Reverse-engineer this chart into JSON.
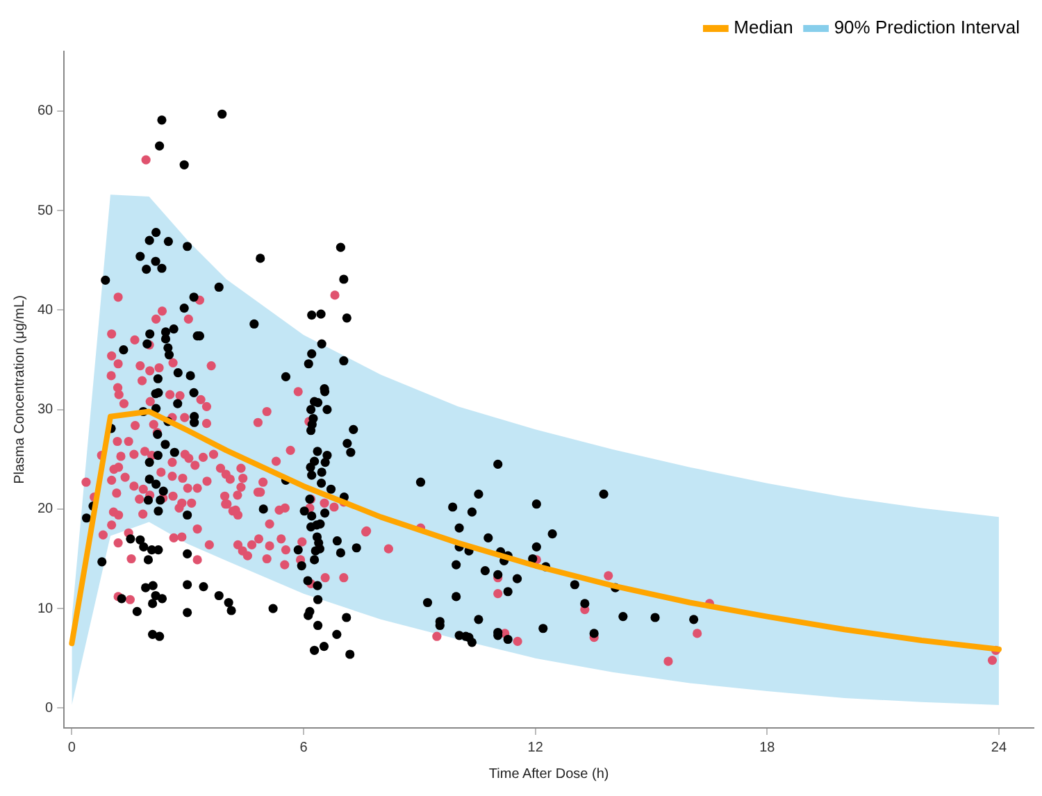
{
  "chart_data": {
    "type": "scatter",
    "xlabel": "Time After Dose (h)",
    "ylabel": "Plasma Concentration (μg/mL)",
    "xlim": [
      -0.2,
      24.9
    ],
    "xticks": [
      0,
      6,
      12,
      18,
      24
    ],
    "ylim": [
      -2,
      66
    ],
    "yticks": [
      0,
      10,
      20,
      30,
      40,
      50,
      60
    ],
    "grid": false,
    "legend": "top right",
    "series": [
      {
        "type": "line",
        "name": "Median",
        "color": "#ffa500",
        "x": [
          0,
          1,
          2,
          3,
          4,
          6,
          8,
          10,
          12,
          14,
          16,
          18,
          20,
          22,
          24
        ],
        "values": [
          6.5,
          29.3,
          29.8,
          27.9,
          25.9,
          22.3,
          19.2,
          16.6,
          14.3,
          12.3,
          10.6,
          9.2,
          7.9,
          6.8,
          5.9
        ]
      },
      {
        "type": "line",
        "name": "90% Prediction Interval",
        "color": "#87ceeb",
        "x": [
          0,
          1,
          2,
          3,
          4,
          6,
          8,
          10,
          12,
          14,
          16,
          18,
          20,
          22,
          24
        ],
        "values": [
          null,
          null,
          null,
          null,
          null,
          null,
          null,
          null,
          null,
          null,
          null,
          null,
          null,
          null,
          null
        ],
        "lower": [
          0.3,
          17.3,
          18.7,
          16.5,
          14.8,
          11.5,
          8.9,
          6.9,
          5.0,
          3.6,
          2.5,
          1.7,
          1.0,
          0.6,
          0.3
        ],
        "upper": [
          9,
          51.6,
          51.4,
          47,
          43.1,
          37.5,
          33.5,
          30.3,
          28.0,
          26.0,
          24.2,
          22.6,
          21.2,
          20.1,
          19.2
        ]
      },
      {
        "type": "scatter",
        "marker": "circle",
        "color": "#000000",
        "x": [
          2.33,
          2.27,
          2.91,
          3.89,
          2.18,
          2.01,
          2.5,
          2.99,
          1.77,
          2.17,
          1.93,
          2.33,
          0.87,
          3.81,
          3.16,
          2.91,
          2.02,
          2.43,
          2.43,
          2.64,
          3.25,
          3.31,
          1.34,
          1.95,
          2.49,
          2.52,
          2.75,
          3.07,
          2.23,
          2.17,
          2.24,
          3.16,
          2.18,
          2.74,
          2.49,
          3.17,
          3.17,
          1.85,
          1.02,
          2.22,
          2.42,
          2.66,
          2.01,
          2.23,
          2.01,
          2.18,
          2.37,
          2.29,
          2.24,
          1.98,
          2.99,
          0.55,
          0.38,
          0.78,
          1.52,
          1.77,
          1.86,
          1.98,
          2.07,
          2.24,
          2.99,
          1.91,
          2.1,
          2.17,
          2.34,
          2.09,
          2.99,
          3.41,
          3.81,
          4.06,
          1.29,
          1.69,
          2.99,
          2.09,
          2.27,
          4.88,
          6.96,
          7.04,
          6.21,
          6.45,
          7.12,
          4.72,
          6.47,
          6.21,
          6.13,
          7.04,
          5.54,
          6.54,
          6.55,
          6.28,
          6.37,
          6.19,
          6.61,
          6.25,
          6.22,
          6.19,
          7.29,
          7.13,
          7.22,
          6.36,
          6.61,
          6.56,
          6.28,
          6.18,
          6.47,
          6.21,
          5.54,
          6.46,
          6.71,
          7.05,
          6.16,
          4.96,
          6.02,
          6.55,
          6.21,
          6.43,
          6.19,
          6.34,
          6.87,
          6.35,
          6.39,
          6.42,
          6.31,
          5.86,
          6.96,
          7.37,
          6.28,
          5.95,
          6.11,
          6.36,
          6.37,
          4.13,
          5.21,
          6.16,
          6.12,
          7.11,
          6.37,
          6.86,
          6.53,
          6.28,
          7.2,
          11.03,
          9.03,
          10.53,
          13.77,
          9.86,
          10.36,
          12.03,
          10.03,
          12.44,
          10.78,
          10.03,
          10.28,
          11.1,
          11.29,
          11.19,
          12.03,
          11.93,
          12.27,
          9.95,
          10.7,
          11.03,
          11.53,
          11.29,
          13.02,
          14.07,
          9.21,
          9.95,
          13.28,
          14.27,
          15.1,
          16.1,
          9.53,
          9.53,
          10.53,
          12.2,
          10.03,
          10.2,
          10.36,
          10.28,
          11.03,
          11.03,
          11.29,
          13.52
        ],
        "values": [
          59.1,
          56.5,
          54.6,
          59.7,
          47.8,
          47.0,
          46.9,
          46.4,
          45.4,
          44.9,
          44.1,
          44.2,
          43.0,
          42.3,
          41.3,
          40.2,
          37.6,
          37.8,
          37.1,
          38.1,
          37.4,
          37.4,
          36.0,
          36.6,
          36.2,
          35.5,
          33.7,
          33.4,
          33.1,
          31.6,
          31.7,
          31.7,
          30.1,
          30.6,
          28.8,
          29.3,
          28.7,
          29.8,
          28.1,
          27.5,
          26.5,
          25.7,
          24.7,
          25.4,
          23.0,
          22.5,
          21.8,
          20.9,
          19.8,
          20.9,
          19.4,
          20.3,
          19.1,
          14.7,
          17.0,
          16.9,
          16.2,
          14.9,
          15.9,
          15.9,
          15.5,
          12.1,
          12.3,
          11.3,
          11.0,
          10.5,
          12.4,
          12.2,
          11.3,
          10.6,
          11.0,
          9.7,
          9.6,
          7.4,
          7.2,
          45.2,
          46.3,
          43.1,
          39.5,
          39.6,
          39.2,
          38.6,
          36.6,
          35.6,
          34.6,
          34.9,
          33.3,
          32.1,
          31.8,
          30.8,
          30.7,
          30.0,
          30.0,
          29.1,
          28.5,
          27.9,
          28.0,
          26.6,
          25.7,
          25.8,
          25.4,
          24.7,
          24.8,
          24.2,
          23.7,
          23.4,
          22.9,
          22.6,
          22.0,
          21.2,
          21.0,
          20.0,
          19.8,
          19.6,
          19.3,
          18.5,
          18.2,
          18.4,
          16.8,
          17.2,
          16.6,
          16.0,
          15.8,
          15.9,
          15.6,
          16.1,
          14.9,
          14.3,
          12.8,
          12.3,
          10.9,
          9.8,
          10.0,
          9.7,
          9.3,
          9.1,
          8.3,
          7.4,
          6.2,
          5.8,
          5.4,
          24.5,
          22.7,
          21.5,
          21.5,
          20.2,
          19.7,
          20.5,
          18.1,
          17.5,
          17.1,
          16.2,
          15.8,
          15.7,
          15.3,
          14.8,
          16.2,
          15.0,
          14.2,
          14.4,
          13.8,
          13.4,
          13.0,
          11.7,
          12.4,
          12.1,
          10.6,
          11.2,
          10.5,
          9.2,
          9.1,
          8.9,
          8.7,
          8.3,
          8.9,
          8.0,
          7.3,
          7.2,
          6.6,
          7.1,
          7.6,
          7.3,
          6.9,
          7.5
        ]
      },
      {
        "marker": "circle",
        "color": "#e0526e",
        "x": [
          1.92,
          1.2,
          3.31,
          2.34,
          2.18,
          3.02,
          1.03,
          1.63,
          2.01,
          1.03,
          1.2,
          1.77,
          2.62,
          3.61,
          1.02,
          1.82,
          2.02,
          2.26,
          1.19,
          1.22,
          1.35,
          2.54,
          2.8,
          3.34,
          3.49,
          2.03,
          2.92,
          2.6,
          3.49,
          1.64,
          2.12,
          2.21,
          1.18,
          1.47,
          0.77,
          1.27,
          1.61,
          1.89,
          2.07,
          2.6,
          2.93,
          3.03,
          3.19,
          3.4,
          3.67,
          3.85,
          3.99,
          1.09,
          1.21,
          1.03,
          1.38,
          2.31,
          2.6,
          2.87,
          3.0,
          3.25,
          3.5,
          0.37,
          0.58,
          1.16,
          1.61,
          1.85,
          1.75,
          2.02,
          2.36,
          2.62,
          2.85,
          3.1,
          1.08,
          1.21,
          1.84,
          2.78,
          3.96,
          3.98,
          1.03,
          0.81,
          1.47,
          2.64,
          2.85,
          3.25,
          1.2,
          3.56,
          1.54,
          3.25,
          1.2,
          1.51,
          4.3,
          4.3,
          6.81,
          5.86,
          5.05,
          4.82,
          6.14,
          5.66,
          5.29,
          4.38,
          4.43,
          4.1,
          4.38,
          4.29,
          4.95,
          4.82,
          4.88,
          4.02,
          4.17,
          4.24,
          5.37,
          5.52,
          5.12,
          6.19,
          6.16,
          6.54,
          6.79,
          7.04,
          7.61,
          4.84,
          4.66,
          4.42,
          4.55,
          5.12,
          5.42,
          5.54,
          5.05,
          5.51,
          5.96,
          5.92,
          6.56,
          7.04,
          6.19,
          7.63,
          8.2,
          9.03,
          12.03,
          11.03,
          11.03,
          13.89,
          13.28,
          16.51,
          9.45,
          11.21,
          11.54,
          13.52,
          16.19,
          15.44,
          23.92,
          23.83
        ],
        "values": [
          55.1,
          41.3,
          41.0,
          39.9,
          39.1,
          39.1,
          37.6,
          37.0,
          36.5,
          35.4,
          34.6,
          34.4,
          34.7,
          34.4,
          33.4,
          32.9,
          33.9,
          34.2,
          32.2,
          31.5,
          30.6,
          31.5,
          31.4,
          31.0,
          30.3,
          30.8,
          29.2,
          29.2,
          28.6,
          28.4,
          28.5,
          27.7,
          26.8,
          26.8,
          25.4,
          25.3,
          25.5,
          25.8,
          25.4,
          24.7,
          25.5,
          25.1,
          24.4,
          25.2,
          25.5,
          24.1,
          23.5,
          24.0,
          24.2,
          22.9,
          23.2,
          23.7,
          23.3,
          23.1,
          22.1,
          22.1,
          22.8,
          22.7,
          21.2,
          21.6,
          22.3,
          22.0,
          21.0,
          21.4,
          21.1,
          21.3,
          20.6,
          20.6,
          19.7,
          19.4,
          19.5,
          20.1,
          21.3,
          20.5,
          18.4,
          17.4,
          17.6,
          17.1,
          17.2,
          18.0,
          16.6,
          16.4,
          15.0,
          14.9,
          11.2,
          10.9,
          16.4,
          19.4,
          41.5,
          31.8,
          29.8,
          28.7,
          28.8,
          25.9,
          24.8,
          24.1,
          23.1,
          23.0,
          22.2,
          21.4,
          22.7,
          21.7,
          21.7,
          20.5,
          19.8,
          19.9,
          19.9,
          20.1,
          18.5,
          21.0,
          20.1,
          20.6,
          20.2,
          20.7,
          17.7,
          17.0,
          16.4,
          15.8,
          15.3,
          16.3,
          17.0,
          15.9,
          15.0,
          14.4,
          16.7,
          14.9,
          13.1,
          13.1,
          12.5,
          17.8,
          16.0,
          18.1,
          14.9,
          13.1,
          11.5,
          13.3,
          9.9,
          10.5,
          7.2,
          7.5,
          6.7,
          7.1,
          7.5,
          4.7,
          5.8,
          4.8
        ]
      }
    ]
  }
}
